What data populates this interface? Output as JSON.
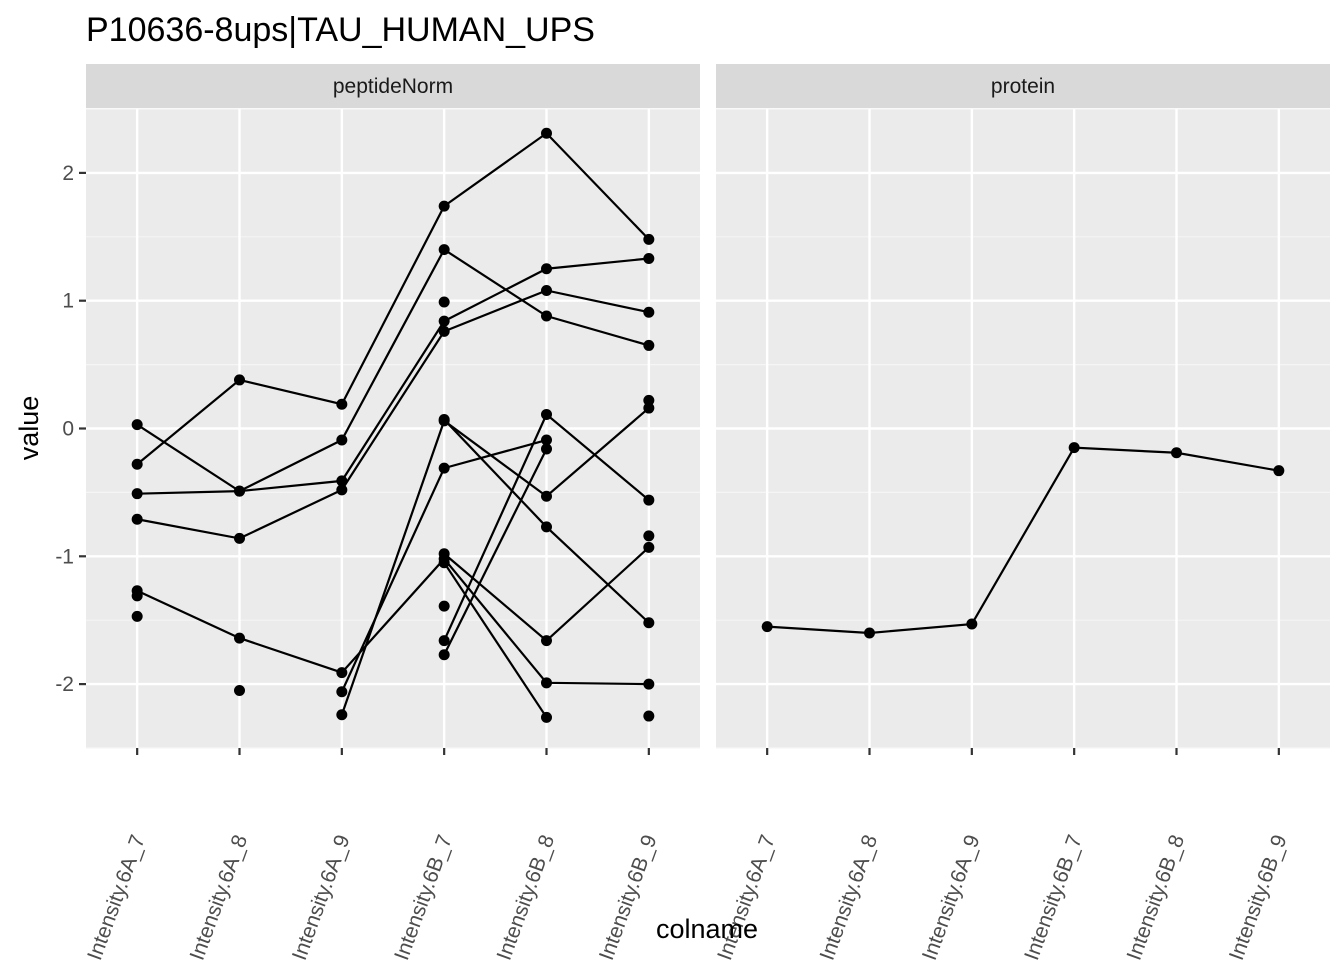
{
  "chart_data": {
    "type": "line",
    "title": "P10636-8ups|TAU_HUMAN_UPS",
    "xlabel": "colname",
    "ylabel": "value",
    "categories": [
      "Intensity.6A_7",
      "Intensity.6A_8",
      "Intensity.6A_9",
      "Intensity.6B_7",
      "Intensity.6B_8",
      "Intensity.6B_9"
    ],
    "ylim": [
      -2.5,
      2.5
    ],
    "yticks": [
      -2,
      -1,
      0,
      1,
      2
    ],
    "grid": true,
    "legend": "none",
    "panels": [
      {
        "name": "peptideNorm",
        "series": [
          {
            "values": [
              -0.28,
              0.38,
              0.19,
              1.74,
              2.31,
              1.48
            ]
          },
          {
            "values": [
              0.03,
              -0.49,
              -0.09,
              1.4,
              0.88,
              0.65
            ]
          },
          {
            "values": [
              -0.51,
              -0.49,
              -0.41,
              0.84,
              1.25,
              1.33
            ]
          },
          {
            "values": [
              -0.71,
              -0.86,
              -0.48,
              0.76,
              1.08,
              0.91
            ]
          },
          {
            "values": [
              -1.27,
              -1.64,
              -1.91,
              -1.02,
              -1.99,
              -2.0
            ]
          },
          {
            "values": [
              null,
              null,
              -2.24,
              0.06,
              -0.53,
              0.16
            ]
          },
          {
            "values": [
              null,
              null,
              -2.06,
              -0.31,
              -0.09,
              null
            ]
          },
          {
            "values": [
              null,
              null,
              null,
              0.07,
              -0.77,
              -1.52
            ]
          },
          {
            "values": [
              null,
              null,
              null,
              -1.05,
              -2.26,
              null
            ]
          },
          {
            "values": [
              null,
              null,
              null,
              -1.66,
              0.11,
              -0.56
            ]
          },
          {
            "values": [
              null,
              null,
              null,
              -1.77,
              -0.16,
              null
            ]
          },
          {
            "values": [
              null,
              null,
              null,
              -0.98,
              -1.66,
              -0.93
            ]
          }
        ],
        "extra_points": [
          {
            "x": "Intensity.6A_7",
            "y": -1.31
          },
          {
            "x": "Intensity.6A_7",
            "y": -1.47
          },
          {
            "x": "Intensity.6A_8",
            "y": -2.05
          },
          {
            "x": "Intensity.6B_7",
            "y": 0.99
          },
          {
            "x": "Intensity.6B_7",
            "y": -1.39
          },
          {
            "x": "Intensity.6B_9",
            "y": 0.22
          },
          {
            "x": "Intensity.6B_9",
            "y": -0.84
          },
          {
            "x": "Intensity.6B_9",
            "y": -2.25
          }
        ]
      },
      {
        "name": "protein",
        "series": [
          {
            "values": [
              -1.55,
              -1.6,
              -1.53,
              -0.15,
              -0.19,
              -0.33
            ]
          }
        ],
        "extra_points": []
      }
    ]
  },
  "colors": {
    "panel_bg": "#ebebeb",
    "strip_bg": "#d9d9d9",
    "grid_major": "#ffffff",
    "grid_minor": "#f5f5f5",
    "ink": "#000000",
    "tick": "#333333"
  }
}
